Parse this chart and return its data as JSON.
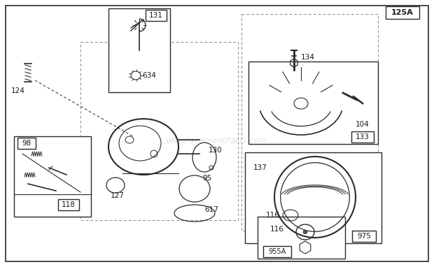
{
  "bg_color": "#ffffff",
  "line_color": "#2a2a2a",
  "text_color": "#1a1a1a",
  "watermark": "eReplacementParts.com",
  "fig_w": 6.2,
  "fig_h": 3.82,
  "dpi": 100
}
